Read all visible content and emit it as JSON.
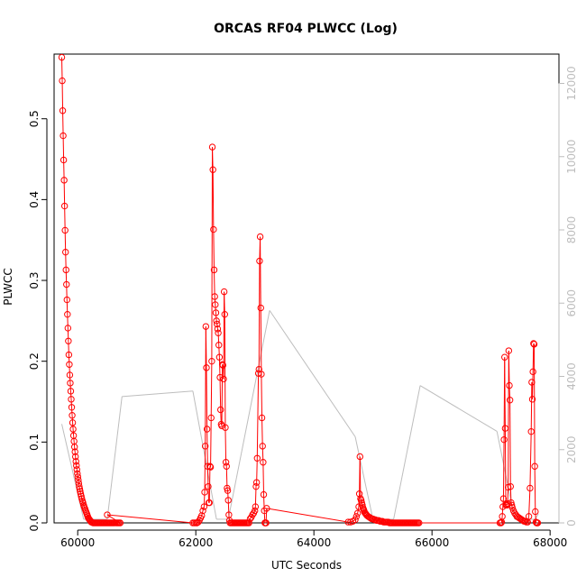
{
  "chart_data": {
    "type": "line",
    "title": "ORCAS RF04 PLWCC (Log)",
    "xlabel": "UTC Seconds",
    "ylabel": "PLWCC",
    "xlim": [
      59600,
      68150
    ],
    "ylim": [
      0,
      0.58
    ],
    "y2lim": [
      0,
      12800
    ],
    "x_ticks": [
      60000,
      62000,
      64000,
      66000,
      68000
    ],
    "y_ticks": [
      0.0,
      0.1,
      0.2,
      0.3,
      0.4,
      0.5
    ],
    "y2_ticks": [
      0,
      2000,
      4000,
      6000,
      8000,
      10000,
      12000
    ],
    "grid": false,
    "colors": {
      "plwcc": "#ff0000",
      "secondary": "#bdbdbd"
    },
    "series": [
      {
        "axis": "left",
        "style": "line+circle",
        "color": "#ff0000",
        "points": [
          [
            59730,
            0.576
          ],
          [
            59738,
            0.547
          ],
          [
            59746,
            0.51
          ],
          [
            59754,
            0.479
          ],
          [
            59762,
            0.449
          ],
          [
            59770,
            0.424
          ],
          [
            59778,
            0.392
          ],
          [
            59786,
            0.362
          ],
          [
            59794,
            0.335
          ],
          [
            59802,
            0.313
          ],
          [
            59810,
            0.295
          ],
          [
            59818,
            0.276
          ],
          [
            59826,
            0.258
          ],
          [
            59834,
            0.241
          ],
          [
            59842,
            0.225
          ],
          [
            59850,
            0.208
          ],
          [
            59858,
            0.196
          ],
          [
            59866,
            0.183
          ],
          [
            59874,
            0.173
          ],
          [
            59882,
            0.163
          ],
          [
            59890,
            0.153
          ],
          [
            59898,
            0.143
          ],
          [
            59906,
            0.133
          ],
          [
            59914,
            0.124
          ],
          [
            59922,
            0.116
          ],
          [
            59930,
            0.108
          ],
          [
            59938,
            0.101
          ],
          [
            59946,
            0.094
          ],
          [
            59954,
            0.088
          ],
          [
            59962,
            0.082
          ],
          [
            59970,
            0.076
          ],
          [
            59978,
            0.071
          ],
          [
            59986,
            0.066
          ],
          [
            59994,
            0.061
          ],
          [
            60002,
            0.057
          ],
          [
            60010,
            0.053
          ],
          [
            60018,
            0.049
          ],
          [
            60026,
            0.045
          ],
          [
            60034,
            0.042
          ],
          [
            60042,
            0.039
          ],
          [
            60050,
            0.036
          ],
          [
            60060,
            0.033
          ],
          [
            60070,
            0.03
          ],
          [
            60080,
            0.027
          ],
          [
            60090,
            0.025
          ],
          [
            60100,
            0.022
          ],
          [
            60110,
            0.02
          ],
          [
            60120,
            0.018
          ],
          [
            60130,
            0.016
          ],
          [
            60140,
            0.014
          ],
          [
            60150,
            0.012
          ],
          [
            60160,
            0.01
          ],
          [
            60170,
            0.008
          ],
          [
            60180,
            0.006
          ],
          [
            60190,
            0.005
          ],
          [
            60200,
            0.004
          ],
          [
            60210,
            0.003
          ],
          [
            60220,
            0.002
          ],
          [
            60230,
            0.001
          ],
          [
            60240,
            0.001
          ],
          [
            60260,
            0.0
          ],
          [
            60280,
            0.0
          ],
          [
            60300,
            0.0
          ],
          [
            60320,
            0.0
          ],
          [
            60340,
            0.0
          ],
          [
            60360,
            0.0
          ],
          [
            60380,
            0.0
          ],
          [
            60400,
            0.0
          ],
          [
            60420,
            0.0
          ],
          [
            60440,
            0.0
          ],
          [
            60460,
            0.0
          ],
          [
            60480,
            0.0
          ],
          [
            60500,
            0.0
          ],
          [
            60520,
            0.0
          ],
          [
            60540,
            0.0
          ],
          [
            60560,
            0.0
          ],
          [
            60580,
            0.0
          ],
          [
            60600,
            0.0
          ],
          [
            60620,
            0.0
          ],
          [
            60640,
            0.0
          ],
          [
            60660,
            0.0
          ],
          [
            60680,
            0.0
          ],
          [
            60700,
            0.0
          ],
          [
            60720,
            0.0
          ],
          [
            60500,
            0.01
          ],
          [
            61950,
            0.0
          ],
          [
            61975,
            0.0
          ],
          [
            62000,
            0.0
          ],
          [
            62020,
            0.0
          ],
          [
            62040,
            0.001
          ],
          [
            62060,
            0.003
          ],
          [
            62080,
            0.006
          ],
          [
            62100,
            0.009
          ],
          [
            62120,
            0.015
          ],
          [
            62140,
            0.02
          ],
          [
            62150,
            0.038
          ],
          [
            62160,
            0.095
          ],
          [
            62170,
            0.243
          ],
          [
            62180,
            0.192
          ],
          [
            62190,
            0.116
          ],
          [
            62200,
            0.07
          ],
          [
            62210,
            0.045
          ],
          [
            62220,
            0.025
          ],
          [
            62230,
            0.025
          ],
          [
            62240,
            0.07
          ],
          [
            62250,
            0.069
          ],
          [
            62260,
            0.13
          ],
          [
            62270,
            0.2
          ],
          [
            62280,
            0.465
          ],
          [
            62290,
            0.437
          ],
          [
            62300,
            0.363
          ],
          [
            62310,
            0.313
          ],
          [
            62320,
            0.28
          ],
          [
            62330,
            0.27
          ],
          [
            62340,
            0.26
          ],
          [
            62350,
            0.25
          ],
          [
            62360,
            0.246
          ],
          [
            62370,
            0.24
          ],
          [
            62380,
            0.235
          ],
          [
            62390,
            0.22
          ],
          [
            62400,
            0.205
          ],
          [
            62410,
            0.18
          ],
          [
            62420,
            0.14
          ],
          [
            62430,
            0.122
          ],
          [
            62440,
            0.12
          ],
          [
            62450,
            0.196
          ],
          [
            62460,
            0.195
          ],
          [
            62470,
            0.178
          ],
          [
            62480,
            0.286
          ],
          [
            62490,
            0.258
          ],
          [
            62500,
            0.118
          ],
          [
            62510,
            0.075
          ],
          [
            62520,
            0.07
          ],
          [
            62530,
            0.043
          ],
          [
            62540,
            0.04
          ],
          [
            62550,
            0.028
          ],
          [
            62560,
            0.01
          ],
          [
            62570,
            0.003
          ],
          [
            62580,
            0.0
          ],
          [
            62600,
            0.0
          ],
          [
            62620,
            0.0
          ],
          [
            62640,
            0.0
          ],
          [
            62660,
            0.0
          ],
          [
            62680,
            0.0
          ],
          [
            62700,
            0.0
          ],
          [
            62720,
            0.0
          ],
          [
            62740,
            0.0
          ],
          [
            62760,
            0.0
          ],
          [
            62780,
            0.0
          ],
          [
            62800,
            0.0
          ],
          [
            62820,
            0.0
          ],
          [
            62840,
            0.0
          ],
          [
            62860,
            0.0
          ],
          [
            62880,
            0.0
          ],
          [
            62900,
            0.0
          ],
          [
            62920,
            0.005
          ],
          [
            62940,
            0.007
          ],
          [
            62960,
            0.01
          ],
          [
            62980,
            0.012
          ],
          [
            63000,
            0.015
          ],
          [
            63010,
            0.02
          ],
          [
            63020,
            0.045
          ],
          [
            63030,
            0.05
          ],
          [
            63040,
            0.08
          ],
          [
            63060,
            0.185
          ],
          [
            63070,
            0.19
          ],
          [
            63080,
            0.324
          ],
          [
            63090,
            0.354
          ],
          [
            63100,
            0.266
          ],
          [
            63110,
            0.184
          ],
          [
            63120,
            0.13
          ],
          [
            63130,
            0.095
          ],
          [
            63140,
            0.075
          ],
          [
            63150,
            0.035
          ],
          [
            63160,
            0.015
          ],
          [
            63170,
            0.0
          ],
          [
            63180,
            0.0
          ],
          [
            63190,
            0.0
          ],
          [
            63200,
            0.018
          ],
          [
            64580,
            0.001
          ],
          [
            64620,
            0.001
          ],
          [
            64660,
            0.002
          ],
          [
            64700,
            0.004
          ],
          [
            64720,
            0.008
          ],
          [
            64740,
            0.012
          ],
          [
            64760,
            0.02
          ],
          [
            64770,
            0.036
          ],
          [
            64780,
            0.082
          ],
          [
            64790,
            0.03
          ],
          [
            64800,
            0.028
          ],
          [
            64810,
            0.025
          ],
          [
            64820,
            0.022
          ],
          [
            64830,
            0.019
          ],
          [
            64840,
            0.017
          ],
          [
            64850,
            0.015
          ],
          [
            64860,
            0.013
          ],
          [
            64870,
            0.012
          ],
          [
            64880,
            0.011
          ],
          [
            64890,
            0.01
          ],
          [
            64900,
            0.009
          ],
          [
            64920,
            0.008
          ],
          [
            64940,
            0.007
          ],
          [
            64960,
            0.006
          ],
          [
            64980,
            0.005
          ],
          [
            65000,
            0.005
          ],
          [
            65020,
            0.004
          ],
          [
            65040,
            0.004
          ],
          [
            65060,
            0.003
          ],
          [
            65080,
            0.003
          ],
          [
            65100,
            0.003
          ],
          [
            65120,
            0.002
          ],
          [
            65140,
            0.002
          ],
          [
            65160,
            0.002
          ],
          [
            65180,
            0.001
          ],
          [
            65200,
            0.001
          ],
          [
            65220,
            0.001
          ],
          [
            65240,
            0.001
          ],
          [
            65260,
            0.001
          ],
          [
            65280,
            0.0
          ],
          [
            65300,
            0.0
          ],
          [
            65320,
            0.0
          ],
          [
            65340,
            0.0
          ],
          [
            65360,
            0.0
          ],
          [
            65380,
            0.0
          ],
          [
            65400,
            0.0
          ],
          [
            65420,
            0.0
          ],
          [
            65440,
            0.0
          ],
          [
            65460,
            0.0
          ],
          [
            65480,
            0.0
          ],
          [
            65500,
            0.0
          ],
          [
            65520,
            0.0
          ],
          [
            65540,
            0.0
          ],
          [
            65560,
            0.0
          ],
          [
            65580,
            0.0
          ],
          [
            65600,
            0.0
          ],
          [
            65620,
            0.0
          ],
          [
            65640,
            0.0
          ],
          [
            65660,
            0.0
          ],
          [
            65680,
            0.0
          ],
          [
            65700,
            0.0
          ],
          [
            65720,
            0.0
          ],
          [
            65740,
            0.0
          ],
          [
            65760,
            0.0
          ],
          [
            65780,
            0.0
          ],
          [
            67150,
            0.0
          ],
          [
            67170,
            0.0
          ],
          [
            67180,
            0.001
          ],
          [
            67190,
            0.008
          ],
          [
            67200,
            0.02
          ],
          [
            67210,
            0.03
          ],
          [
            67220,
            0.103
          ],
          [
            67230,
            0.205
          ],
          [
            67240,
            0.117
          ],
          [
            67250,
            0.022
          ],
          [
            67260,
            0.023
          ],
          [
            67270,
            0.022
          ],
          [
            67280,
            0.024
          ],
          [
            67290,
            0.044
          ],
          [
            67300,
            0.213
          ],
          [
            67310,
            0.17
          ],
          [
            67320,
            0.152
          ],
          [
            67330,
            0.045
          ],
          [
            67340,
            0.025
          ],
          [
            67350,
            0.022
          ],
          [
            67360,
            0.019
          ],
          [
            67380,
            0.015
          ],
          [
            67400,
            0.012
          ],
          [
            67420,
            0.01
          ],
          [
            67440,
            0.008
          ],
          [
            67460,
            0.007
          ],
          [
            67480,
            0.006
          ],
          [
            67500,
            0.005
          ],
          [
            67520,
            0.004
          ],
          [
            67540,
            0.003
          ],
          [
            67560,
            0.002
          ],
          [
            67580,
            0.002
          ],
          [
            67600,
            0.001
          ],
          [
            67620,
            0.001
          ],
          [
            67640,
            0.008
          ],
          [
            67660,
            0.043
          ],
          [
            67680,
            0.113
          ],
          [
            67690,
            0.174
          ],
          [
            67700,
            0.153
          ],
          [
            67710,
            0.187
          ],
          [
            67720,
            0.222
          ],
          [
            67730,
            0.221
          ],
          [
            67740,
            0.07
          ],
          [
            67750,
            0.014
          ],
          [
            67760,
            0.001
          ],
          [
            67770,
            0.0
          ],
          [
            67780,
            0.0
          ],
          [
            67790,
            0.0
          ]
        ]
      },
      {
        "axis": "right",
        "style": "line",
        "color": "#bdbdbd",
        "points": [
          [
            59730,
            2700
          ],
          [
            60100,
            100
          ],
          [
            60500,
            100
          ],
          [
            60750,
            3450
          ],
          [
            61950,
            3600
          ],
          [
            62350,
            100
          ],
          [
            62550,
            100
          ],
          [
            63250,
            5800
          ],
          [
            64700,
            2350
          ],
          [
            65000,
            100
          ],
          [
            65350,
            100
          ],
          [
            65800,
            3750
          ],
          [
            67100,
            2500
          ],
          [
            67400,
            100
          ],
          [
            67750,
            100
          ],
          [
            67800,
            250
          ]
        ]
      }
    ]
  }
}
